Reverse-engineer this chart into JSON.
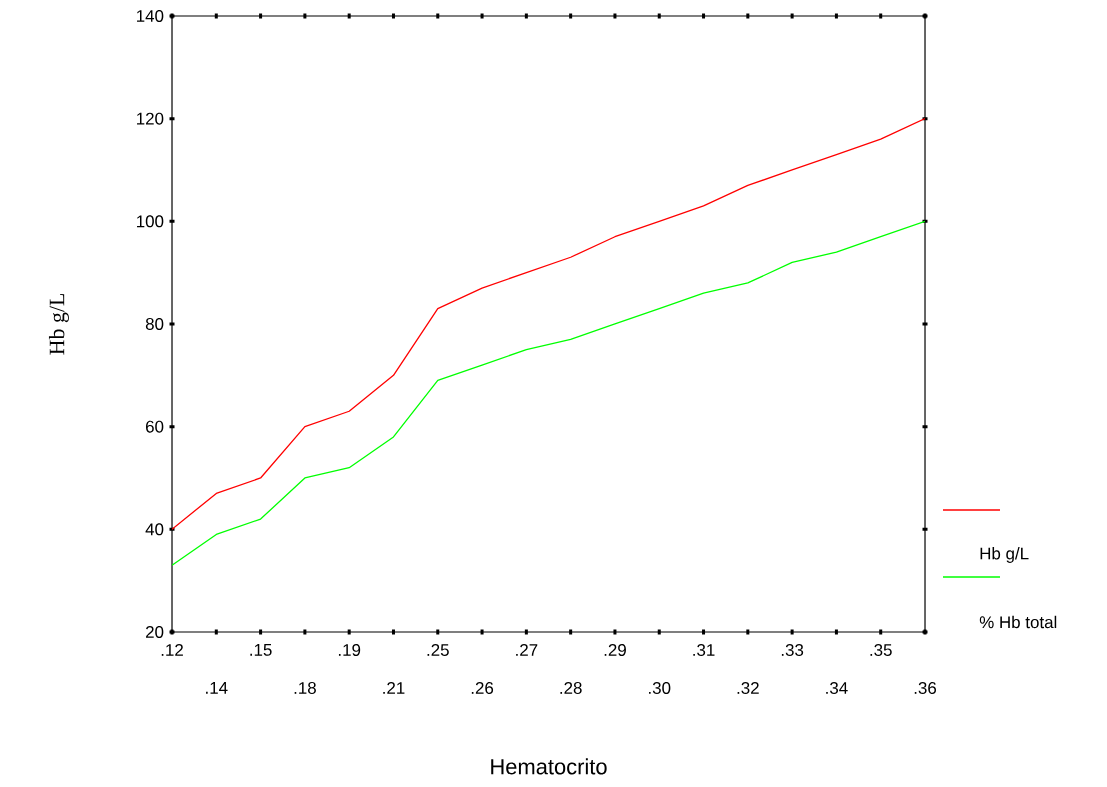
{
  "chart_data": {
    "type": "line",
    "xlabel": "Hematocrito",
    "ylabel": "Hb g/L",
    "categories": [
      ".12",
      ".14",
      ".15",
      ".18",
      ".19",
      ".21",
      ".25",
      ".26",
      ".27",
      ".28",
      ".29",
      ".30",
      ".31",
      ".32",
      ".33",
      ".34",
      ".35",
      ".36"
    ],
    "series": [
      {
        "name": "Hb g/L",
        "color": "#ff0000",
        "values": [
          40,
          47,
          50,
          60,
          63,
          70,
          83,
          87,
          90,
          93,
          97,
          100,
          103,
          107,
          110,
          113,
          116,
          120
        ]
      },
      {
        "name": "% Hb total",
        "color": "#00ff00",
        "values": [
          33,
          39,
          42,
          50,
          52,
          58,
          69,
          72,
          75,
          77,
          80,
          83,
          86,
          88,
          92,
          94,
          97,
          100
        ]
      }
    ],
    "ylim": [
      20,
      140
    ],
    "yticks": [
      20,
      40,
      60,
      80,
      100,
      120,
      140
    ],
    "legend": "bottom right",
    "line_style": "solid"
  }
}
